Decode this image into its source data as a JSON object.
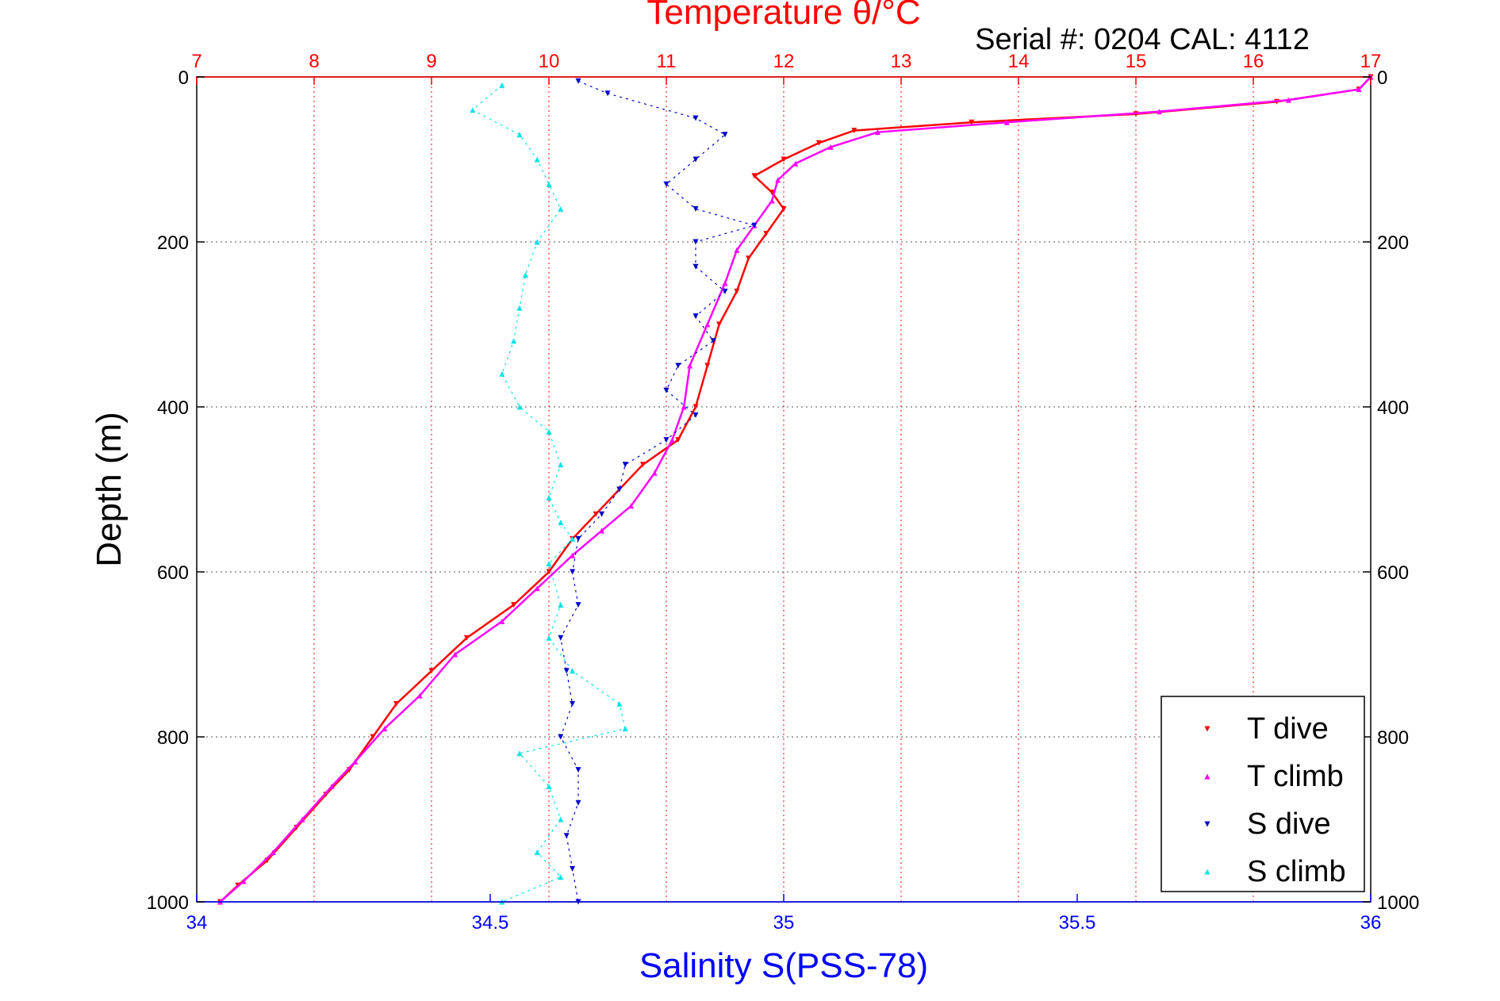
{
  "header": {
    "serial_label": "Serial #: 0204  CAL: 4112"
  },
  "colors": {
    "temperature_axis": "#ff0000",
    "salinity_axis": "#0000ff",
    "T_dive": "#ff0000",
    "T_climb": "#ff00ff",
    "S_dive": "#0000cc",
    "S_climb": "#00e5e5",
    "grid": "#555555"
  },
  "chart_data": {
    "type": "scatter",
    "title": "Temperature θ/°C",
    "xlabel_top": "Temperature θ/°C",
    "xlabel": "Salinity S(PSS-78)",
    "ylabel": "Depth (m)",
    "y_reversed": true,
    "ylim": [
      0,
      1000
    ],
    "xlim_salinity": [
      34,
      36
    ],
    "xlim_temperature": [
      7,
      17
    ],
    "grid": true,
    "legend_position": "bottom-right",
    "y_ticks": [
      "0",
      "200",
      "400",
      "600",
      "800",
      "1000"
    ],
    "x_ticks_salinity": [
      "34",
      "34.5",
      "35",
      "35.5",
      "36"
    ],
    "x_ticks_temperature": [
      "7",
      "8",
      "9",
      "10",
      "11",
      "12",
      "13",
      "14",
      "15",
      "16",
      "17"
    ],
    "series": [
      {
        "name": "T dive",
        "axis": "temperature",
        "marker": "triangle-down",
        "points": [
          [
            17.0,
            0
          ],
          [
            16.9,
            15
          ],
          [
            16.2,
            30
          ],
          [
            15.0,
            45
          ],
          [
            13.6,
            55
          ],
          [
            12.6,
            65
          ],
          [
            12.3,
            80
          ],
          [
            12.0,
            100
          ],
          [
            11.75,
            120
          ],
          [
            11.9,
            140
          ],
          [
            12.0,
            160
          ],
          [
            11.85,
            190
          ],
          [
            11.7,
            220
          ],
          [
            11.6,
            260
          ],
          [
            11.45,
            300
          ],
          [
            11.35,
            350
          ],
          [
            11.25,
            400
          ],
          [
            11.1,
            440
          ],
          [
            10.8,
            470
          ],
          [
            10.6,
            500
          ],
          [
            10.4,
            530
          ],
          [
            10.2,
            560
          ],
          [
            10.0,
            600
          ],
          [
            9.7,
            640
          ],
          [
            9.3,
            680
          ],
          [
            9.0,
            720
          ],
          [
            8.7,
            760
          ],
          [
            8.5,
            800
          ],
          [
            8.3,
            840
          ],
          [
            8.1,
            870
          ],
          [
            7.85,
            910
          ],
          [
            7.6,
            950
          ],
          [
            7.35,
            980
          ],
          [
            7.2,
            1000
          ]
        ]
      },
      {
        "name": "T climb",
        "axis": "temperature",
        "marker": "triangle-up",
        "points": [
          [
            17.0,
            0
          ],
          [
            16.9,
            15
          ],
          [
            16.3,
            28
          ],
          [
            15.2,
            42
          ],
          [
            13.9,
            55
          ],
          [
            12.8,
            67
          ],
          [
            12.4,
            85
          ],
          [
            12.1,
            105
          ],
          [
            11.95,
            125
          ],
          [
            11.9,
            150
          ],
          [
            11.75,
            180
          ],
          [
            11.6,
            210
          ],
          [
            11.5,
            250
          ],
          [
            11.35,
            300
          ],
          [
            11.2,
            350
          ],
          [
            11.15,
            400
          ],
          [
            11.05,
            440
          ],
          [
            10.9,
            480
          ],
          [
            10.7,
            520
          ],
          [
            10.45,
            550
          ],
          [
            10.2,
            580
          ],
          [
            9.9,
            620
          ],
          [
            9.6,
            660
          ],
          [
            9.2,
            700
          ],
          [
            8.9,
            750
          ],
          [
            8.6,
            790
          ],
          [
            8.35,
            830
          ],
          [
            8.15,
            860
          ],
          [
            7.9,
            900
          ],
          [
            7.65,
            940
          ],
          [
            7.4,
            975
          ],
          [
            7.2,
            1000
          ]
        ]
      },
      {
        "name": "S dive",
        "axis": "salinity",
        "marker": "triangle-down",
        "points": [
          [
            34.65,
            5
          ],
          [
            34.7,
            20
          ],
          [
            34.85,
            50
          ],
          [
            34.9,
            70
          ],
          [
            34.85,
            100
          ],
          [
            34.8,
            130
          ],
          [
            34.85,
            160
          ],
          [
            34.95,
            180
          ],
          [
            34.85,
            200
          ],
          [
            34.85,
            230
          ],
          [
            34.9,
            260
          ],
          [
            34.85,
            290
          ],
          [
            34.88,
            320
          ],
          [
            34.82,
            350
          ],
          [
            34.8,
            380
          ],
          [
            34.85,
            410
          ],
          [
            34.8,
            440
          ],
          [
            34.73,
            470
          ],
          [
            34.72,
            500
          ],
          [
            34.69,
            530
          ],
          [
            34.65,
            560
          ],
          [
            34.64,
            600
          ],
          [
            34.65,
            640
          ],
          [
            34.62,
            680
          ],
          [
            34.63,
            720
          ],
          [
            34.64,
            760
          ],
          [
            34.62,
            800
          ],
          [
            34.65,
            840
          ],
          [
            34.65,
            880
          ],
          [
            34.63,
            920
          ],
          [
            34.64,
            960
          ],
          [
            34.65,
            1000
          ]
        ]
      },
      {
        "name": "S climb",
        "axis": "salinity",
        "marker": "triangle-up",
        "points": [
          [
            34.52,
            10
          ],
          [
            34.47,
            40
          ],
          [
            34.55,
            70
          ],
          [
            34.58,
            100
          ],
          [
            34.6,
            130
          ],
          [
            34.62,
            160
          ],
          [
            34.58,
            200
          ],
          [
            34.56,
            240
          ],
          [
            34.55,
            280
          ],
          [
            34.54,
            320
          ],
          [
            34.52,
            360
          ],
          [
            34.55,
            400
          ],
          [
            34.6,
            430
          ],
          [
            34.62,
            470
          ],
          [
            34.6,
            510
          ],
          [
            34.62,
            540
          ],
          [
            34.64,
            560
          ],
          [
            34.6,
            590
          ],
          [
            34.62,
            640
          ],
          [
            34.6,
            680
          ],
          [
            34.64,
            720
          ],
          [
            34.72,
            760
          ],
          [
            34.73,
            790
          ],
          [
            34.55,
            820
          ],
          [
            34.6,
            860
          ],
          [
            34.62,
            900
          ],
          [
            34.58,
            940
          ],
          [
            34.62,
            970
          ],
          [
            34.52,
            1000
          ]
        ]
      }
    ]
  }
}
